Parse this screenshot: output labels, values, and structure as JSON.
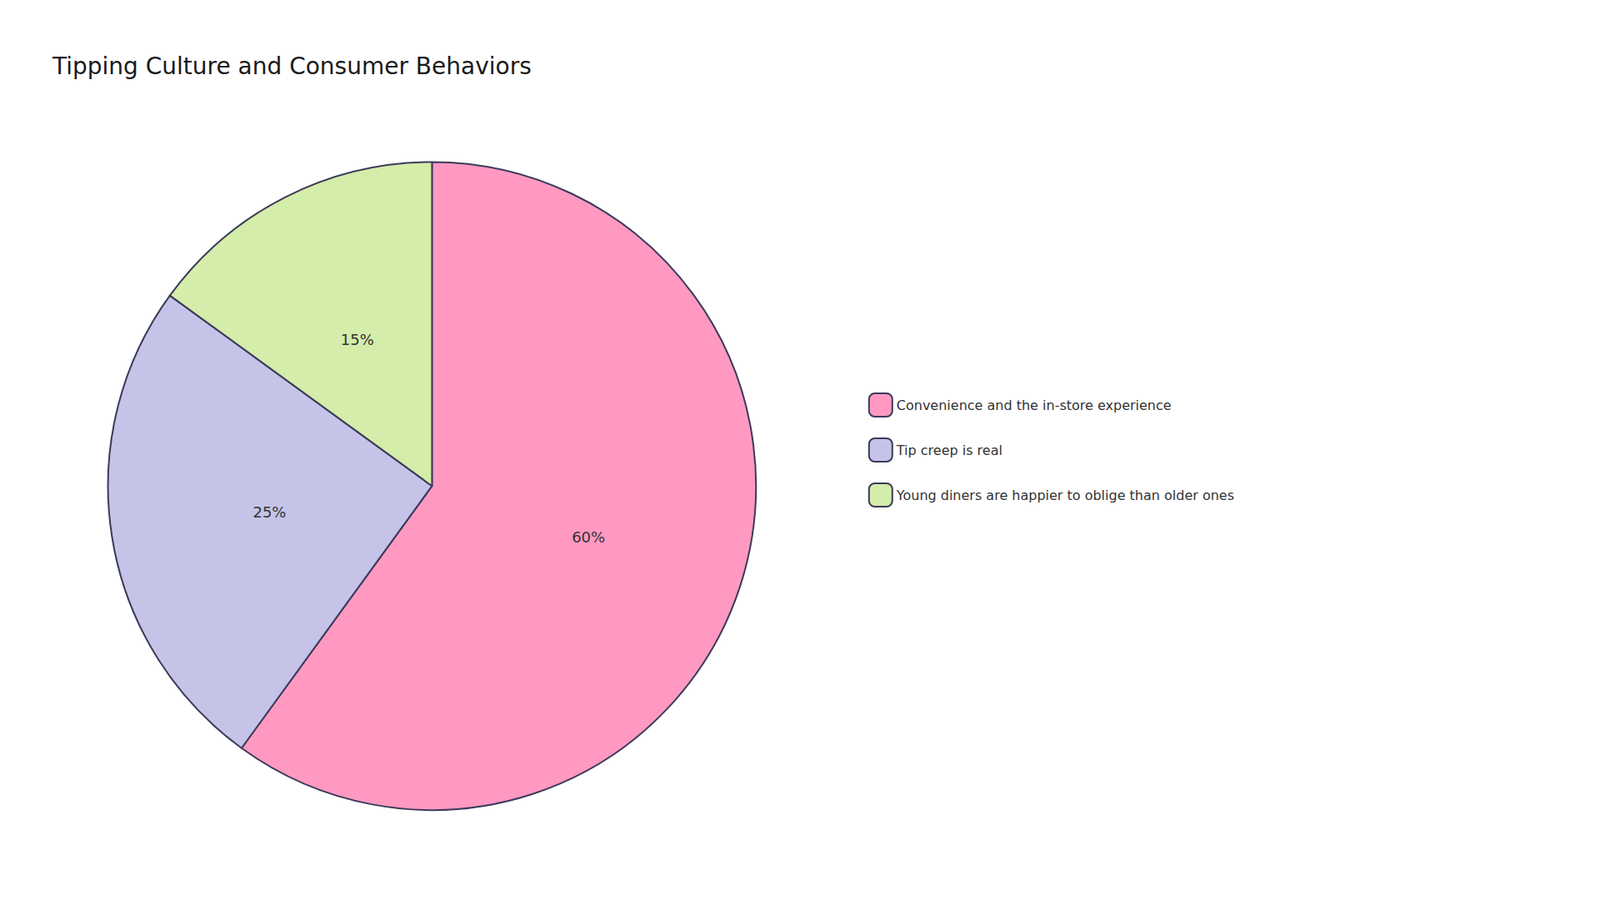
{
  "chart_data": {
    "type": "pie",
    "title": "Tipping Culture and Consumer Behaviors",
    "categories": [
      "Convenience and the in-store experience",
      "Tip creep is real",
      "Young diners are happier to oblige than older ones"
    ],
    "values": [
      60,
      25,
      15
    ],
    "value_labels": [
      "60%",
      "25%",
      "15%"
    ],
    "colors": [
      "#FF99C2",
      "#C5C4E8",
      "#D4EDAA"
    ],
    "data_labels": true,
    "legend": "right"
  }
}
